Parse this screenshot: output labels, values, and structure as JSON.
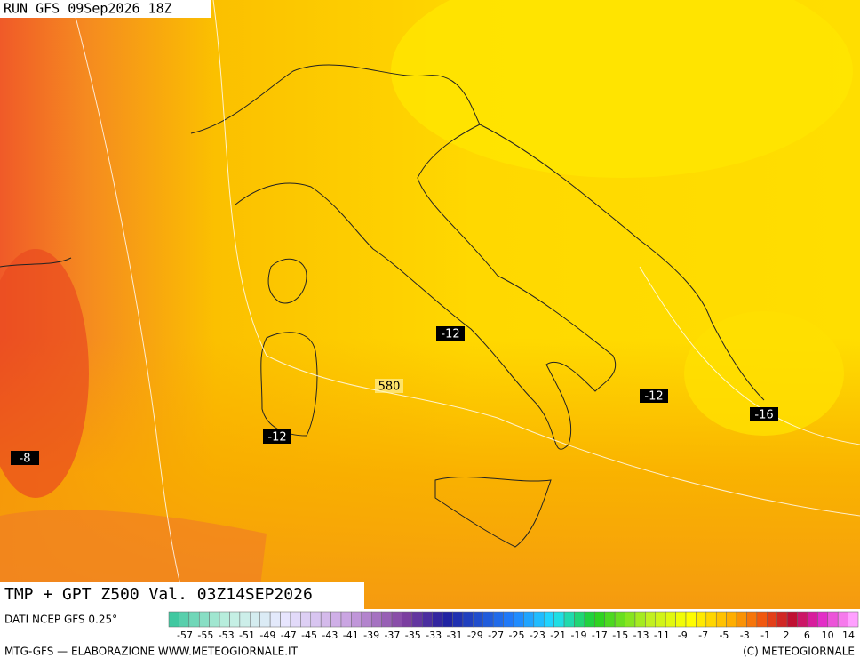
{
  "header": {
    "run": "RUN GFS 09Sep2026 18Z"
  },
  "map": {
    "labels": [
      {
        "text": "-12",
        "kind": "temperature"
      },
      {
        "text": "580",
        "kind": "geopotential"
      },
      {
        "text": "-12",
        "kind": "temperature"
      },
      {
        "text": "-16",
        "kind": "temperature"
      },
      {
        "text": "-12",
        "kind": "temperature"
      },
      {
        "text": "-8",
        "kind": "temperature"
      }
    ]
  },
  "title": "TMP + GPT Z500 Val. 03Z14SEP2026",
  "source": "DATI NCEP GFS 0.25°",
  "colorbar": {
    "labels": [
      -57,
      -55,
      -53,
      -51,
      -49,
      -47,
      -45,
      -43,
      -41,
      -39,
      -37,
      -35,
      -33,
      -31,
      -29,
      -27,
      -25,
      -23,
      -21,
      -19,
      -17,
      -15,
      -13,
      -11,
      -9,
      -7,
      -5,
      -3,
      -1,
      2,
      6,
      10,
      14
    ]
  },
  "footer": {
    "left": "MTG-GFS — ELABORAZIONE WWW.METEOGIORNALE.IT",
    "right": "(C) METEOGIORNALE"
  }
}
